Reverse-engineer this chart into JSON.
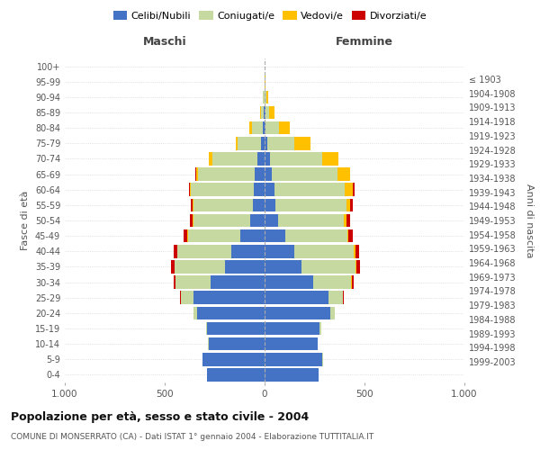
{
  "age_groups": [
    "0-4",
    "5-9",
    "10-14",
    "15-19",
    "20-24",
    "25-29",
    "30-34",
    "35-39",
    "40-44",
    "45-49",
    "50-54",
    "55-59",
    "60-64",
    "65-69",
    "70-74",
    "75-79",
    "80-84",
    "85-89",
    "90-94",
    "95-99",
    "100+"
  ],
  "birth_years": [
    "1999-2003",
    "1994-1998",
    "1989-1993",
    "1984-1988",
    "1979-1983",
    "1974-1978",
    "1969-1973",
    "1964-1968",
    "1959-1963",
    "1954-1958",
    "1949-1953",
    "1944-1948",
    "1939-1943",
    "1934-1938",
    "1929-1933",
    "1924-1928",
    "1919-1923",
    "1914-1918",
    "1909-1913",
    "1904-1908",
    "≤ 1903"
  ],
  "males": {
    "celibi": [
      290,
      310,
      280,
      290,
      340,
      355,
      270,
      200,
      165,
      120,
      72,
      58,
      55,
      48,
      38,
      20,
      8,
      4,
      2,
      1,
      0
    ],
    "coniugati": [
      0,
      1,
      2,
      5,
      15,
      62,
      175,
      250,
      270,
      265,
      285,
      300,
      315,
      285,
      225,
      115,
      55,
      15,
      5,
      1,
      0
    ],
    "vedovi": [
      0,
      0,
      0,
      0,
      0,
      1,
      0,
      1,
      1,
      1,
      2,
      3,
      5,
      10,
      15,
      10,
      15,
      4,
      2,
      0,
      0
    ],
    "divorziati": [
      0,
      0,
      0,
      0,
      2,
      5,
      12,
      18,
      20,
      20,
      15,
      8,
      5,
      2,
      1,
      0,
      0,
      0,
      0,
      0,
      0
    ]
  },
  "females": {
    "nubili": [
      270,
      290,
      265,
      275,
      330,
      320,
      245,
      185,
      150,
      105,
      68,
      55,
      48,
      38,
      25,
      12,
      6,
      3,
      2,
      1,
      0
    ],
    "coniugate": [
      0,
      1,
      2,
      8,
      20,
      72,
      188,
      272,
      298,
      308,
      328,
      355,
      355,
      328,
      265,
      135,
      65,
      18,
      5,
      1,
      0
    ],
    "vedove": [
      0,
      0,
      0,
      0,
      0,
      1,
      2,
      3,
      5,
      8,
      12,
      20,
      40,
      60,
      80,
      82,
      55,
      30,
      10,
      2,
      0
    ],
    "divorziate": [
      0,
      0,
      0,
      1,
      2,
      5,
      12,
      18,
      22,
      22,
      18,
      10,
      6,
      2,
      1,
      0,
      0,
      0,
      0,
      0,
      0
    ]
  },
  "colors": {
    "celibi": "#4472c4",
    "coniugati": "#c5d9a0",
    "vedovi": "#ffc000",
    "divorziati": "#cc0000"
  },
  "xlim": 1000,
  "title": "Popolazione per età, sesso e stato civile - 2004",
  "subtitle": "COMUNE DI MONSERRATO (CA) - Dati ISTAT 1° gennaio 2004 - Elaborazione TUTTITALIA.IT",
  "ylabel": "Fasce di età",
  "ylabel_right": "Anni di nascita",
  "xlabel_left": "Maschi",
  "xlabel_right": "Femmine",
  "xtick_labels": [
    "1.000",
    "500",
    "0",
    "500",
    "1.000"
  ],
  "xtick_vals": [
    -1000,
    -500,
    0,
    500,
    1000
  ]
}
